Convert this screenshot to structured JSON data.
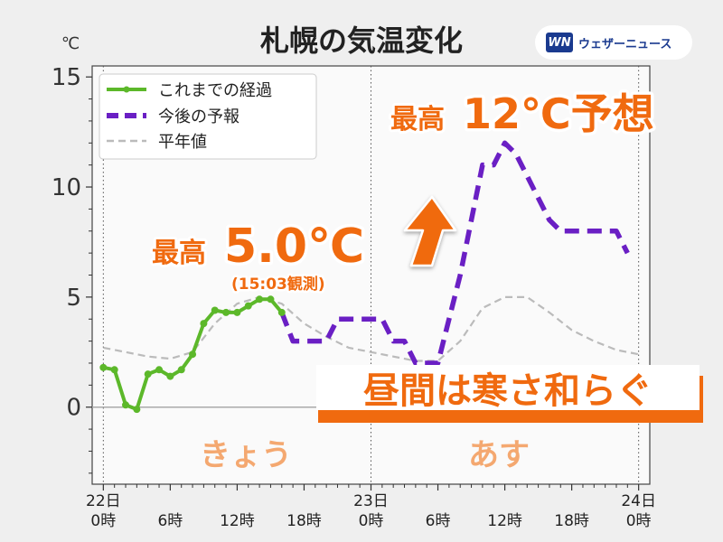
{
  "chart_data": {
    "type": "line",
    "title": "札幌の気温変化",
    "ylabel": "℃",
    "ylim": [
      -3.5,
      15.5
    ],
    "yticks": [
      0,
      5,
      10,
      15
    ],
    "xlim": [
      -1,
      49
    ],
    "xticks": [
      {
        "x": 0,
        "line1": "22日",
        "line2": "0時"
      },
      {
        "x": 6,
        "line1": "",
        "line2": "6時"
      },
      {
        "x": 12,
        "line1": "",
        "line2": "12時"
      },
      {
        "x": 18,
        "line1": "",
        "line2": "18時"
      },
      {
        "x": 24,
        "line1": "23日",
        "line2": "0時"
      },
      {
        "x": 30,
        "line1": "",
        "line2": "6時"
      },
      {
        "x": 36,
        "line1": "",
        "line2": "12時"
      },
      {
        "x": 42,
        "line1": "",
        "line2": "18時"
      },
      {
        "x": 48,
        "line1": "24日",
        "line2": "0時"
      }
    ],
    "legend": "top-left",
    "grid": false,
    "series": [
      {
        "name": "これまでの経過",
        "style": "solid-markers",
        "color": "#5cb82a",
        "points": [
          [
            0,
            1.8
          ],
          [
            1,
            1.7
          ],
          [
            2,
            0.1
          ],
          [
            3,
            -0.1
          ],
          [
            4,
            1.5
          ],
          [
            5,
            1.7
          ],
          [
            6,
            1.4
          ],
          [
            7,
            1.7
          ],
          [
            8,
            2.4
          ],
          [
            9,
            3.8
          ],
          [
            10,
            4.4
          ],
          [
            11,
            4.3
          ],
          [
            12,
            4.3
          ],
          [
            13,
            4.6
          ],
          [
            14,
            4.9
          ],
          [
            15,
            4.9
          ],
          [
            16,
            4.3
          ]
        ]
      },
      {
        "name": "今後の予報",
        "style": "dashed-thick",
        "color": "#6a1fc4",
        "points": [
          [
            16,
            4.3
          ],
          [
            17,
            3
          ],
          [
            18,
            3
          ],
          [
            19,
            3
          ],
          [
            20,
            3
          ],
          [
            21,
            4
          ],
          [
            22,
            4
          ],
          [
            23,
            4
          ],
          [
            24,
            4
          ],
          [
            25,
            4
          ],
          [
            26,
            3
          ],
          [
            27,
            3
          ],
          [
            28,
            2
          ],
          [
            29,
            2
          ],
          [
            30,
            2
          ],
          [
            31,
            4
          ],
          [
            32,
            6
          ],
          [
            33,
            8.5
          ],
          [
            34,
            11
          ],
          [
            35,
            11
          ],
          [
            36,
            12
          ],
          [
            37,
            11.5
          ],
          [
            38,
            10.5
          ],
          [
            39,
            9.5
          ],
          [
            40,
            8.5
          ],
          [
            41,
            8
          ],
          [
            42,
            8
          ],
          [
            43,
            8
          ],
          [
            44,
            8
          ],
          [
            45,
            8
          ],
          [
            46,
            8
          ],
          [
            47,
            7
          ]
        ]
      },
      {
        "name": "平年値",
        "style": "dashed-thin",
        "color": "#bbbbbb",
        "points": [
          [
            0,
            2.7
          ],
          [
            2,
            2.5
          ],
          [
            4,
            2.3
          ],
          [
            6,
            2.2
          ],
          [
            8,
            2.5
          ],
          [
            10,
            3.8
          ],
          [
            12,
            4.7
          ],
          [
            14,
            5
          ],
          [
            16,
            4.7
          ],
          [
            18,
            3.8
          ],
          [
            20,
            3.2
          ],
          [
            22,
            2.7
          ],
          [
            24,
            2.5
          ],
          [
            26,
            2.3
          ],
          [
            28,
            2.1
          ],
          [
            30,
            2.1
          ],
          [
            32,
            3
          ],
          [
            34,
            4.5
          ],
          [
            36,
            5
          ],
          [
            38,
            5
          ],
          [
            40,
            4.3
          ],
          [
            42,
            3.5
          ],
          [
            44,
            3
          ],
          [
            46,
            2.6
          ],
          [
            48,
            2.4
          ]
        ]
      }
    ],
    "annotations": {
      "max_today": {
        "label": "最高",
        "value": "5.0℃",
        "note": "(15:03観測)",
        "x": 15,
        "y": 4.9
      },
      "max_tomorrow": {
        "label": "最高",
        "value": "12℃予想"
      },
      "headline": "昼間は寒さ和らぐ",
      "today": "きょう",
      "tomorrow": "あす"
    },
    "colors": {
      "accent_orange": "#f06a0f",
      "orange_soft": "#f4a870",
      "actual_green": "#5cb82a",
      "forecast_purple": "#6a1fc4",
      "normal_gray": "#bbbbbb"
    }
  },
  "brand": {
    "logo_text": "WN",
    "name": "ウェザーニュース"
  }
}
